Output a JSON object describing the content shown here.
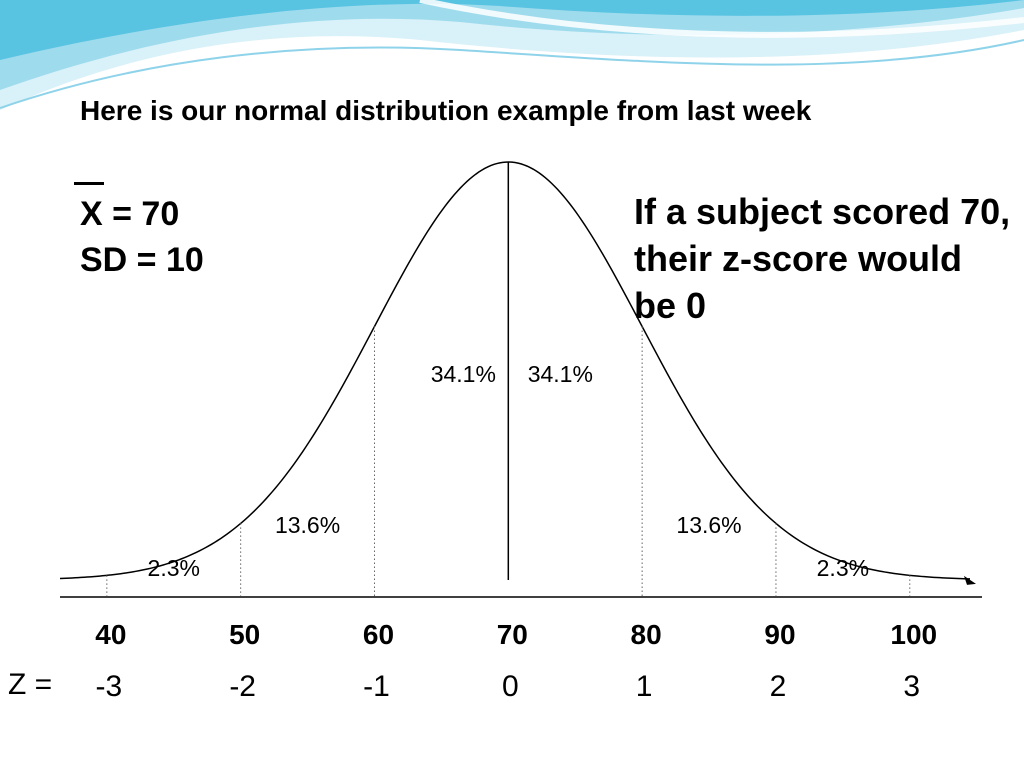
{
  "slide": {
    "title": "Here is our normal distribution example from last week",
    "mean_line": "X = 70",
    "sd_line": "SD = 10",
    "note": "If a subject scored 70, their z-score would be 0",
    "z_prefix": "Z =",
    "accent_colors": [
      "#bfe6f2",
      "#7fd0e8",
      "#38b7dc"
    ]
  },
  "chart_data": {
    "type": "area",
    "title": "",
    "xlabel": "",
    "ylabel": "",
    "mean": 70,
    "sd": 10,
    "x_ticks": [
      "40",
      "50",
      "60",
      "70",
      "80",
      "90",
      "100"
    ],
    "z_ticks": [
      "-3",
      "-2",
      "-1",
      "0",
      "1",
      "2",
      "3"
    ],
    "region_labels": [
      {
        "label": "2.3%",
        "from": 40,
        "to": 50
      },
      {
        "label": "13.6%",
        "from": 50,
        "to": 60
      },
      {
        "label": "34.1%",
        "from": 60,
        "to": 70
      },
      {
        "label": "34.1%",
        "from": 70,
        "to": 80
      },
      {
        "label": "13.6%",
        "from": 80,
        "to": 90
      },
      {
        "label": "2.3%",
        "from": 90,
        "to": 100
      }
    ],
    "divider_x": [
      40,
      50,
      60,
      80,
      90,
      100
    ],
    "center_x": 70,
    "xlim": [
      36.5,
      104.5
    ]
  }
}
